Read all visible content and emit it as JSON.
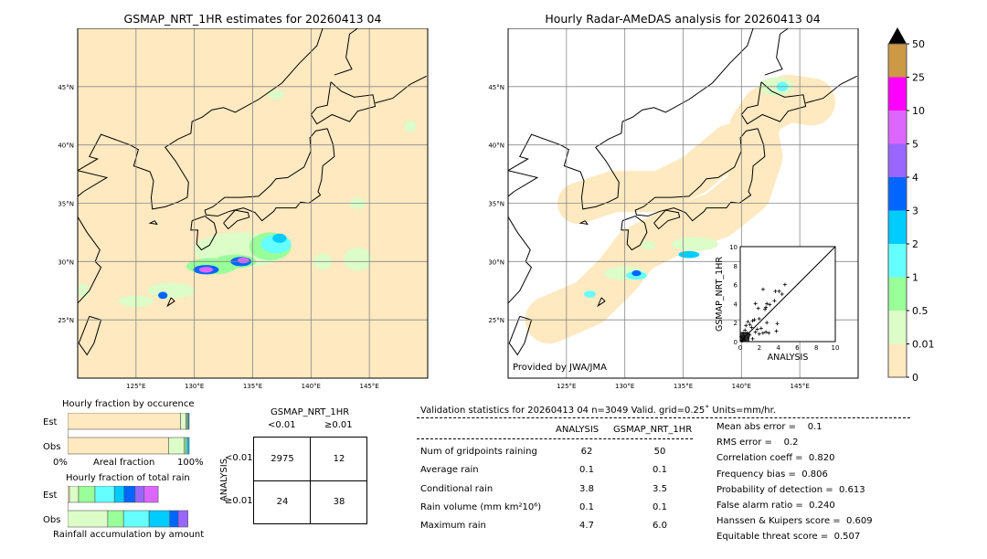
{
  "colors": {
    "palette": [
      "#fee9c0",
      "#dcfcc8",
      "#99ff99",
      "#66ffff",
      "#00ccff",
      "#0066ff",
      "#9966ff",
      "#dd66ff",
      "#ff00ff",
      "#cc9944"
    ],
    "background_land_sea": "#fee9c0"
  },
  "chart_data": [
    {
      "type": "heatmap",
      "title": "GSMAP_NRT_1HR estimates for 20260413 04",
      "xlim": [
        120,
        150
      ],
      "ylim": [
        20,
        50
      ],
      "x_ticks": [
        "125°E",
        "130°E",
        "135°E",
        "140°E",
        "145°E"
      ],
      "y_ticks": [
        "25°N",
        "30°N",
        "35°N",
        "40°N",
        "45°N"
      ],
      "grid": true
    },
    {
      "type": "heatmap",
      "title": "Hourly Radar-AMeDAS analysis for 20260413 04",
      "xlim": [
        120,
        150
      ],
      "ylim": [
        20,
        50
      ],
      "x_ticks": [
        "125°E",
        "130°E",
        "135°E",
        "140°E",
        "145°E"
      ],
      "y_ticks": [
        "25°N",
        "30°N",
        "35°N",
        "40°N",
        "45°N"
      ],
      "grid": true,
      "annotation": "Provided by JWA/JMA"
    },
    {
      "type": "scatter",
      "xlabel": "ANALYSIS",
      "ylabel": "GSMAP_NRT_1HR",
      "xlim": [
        0,
        10
      ],
      "ylim": [
        0,
        10
      ],
      "x_ticks": [
        "0",
        "2",
        "4",
        "6",
        "8",
        "10"
      ],
      "y_ticks": [
        "0",
        "2",
        "4",
        "6",
        "8",
        "10"
      ],
      "points": [
        [
          2.4,
          5.5
        ],
        [
          4.7,
          6.0
        ],
        [
          3.7,
          5.3
        ],
        [
          4.1,
          5.3
        ],
        [
          4.4,
          5.0
        ],
        [
          1.6,
          4.0
        ],
        [
          2.8,
          4.0
        ],
        [
          3.1,
          3.9
        ],
        [
          3.6,
          4.3
        ],
        [
          1.9,
          3.5
        ],
        [
          2.6,
          3.4
        ],
        [
          2.7,
          3.6
        ],
        [
          1.3,
          2.2
        ],
        [
          1.5,
          2.3
        ],
        [
          2.0,
          2.4
        ],
        [
          0.8,
          2.1
        ],
        [
          1.0,
          1.8
        ],
        [
          2.8,
          2.0
        ],
        [
          3.9,
          1.9
        ],
        [
          3.8,
          1.1
        ],
        [
          2.2,
          1.4
        ],
        [
          1.8,
          1.3
        ],
        [
          2.4,
          0.9
        ],
        [
          2.7,
          1.0
        ],
        [
          3.0,
          0.9
        ],
        [
          1.2,
          1.5
        ],
        [
          0.6,
          1.7
        ],
        [
          0.5,
          1.2
        ],
        [
          0.7,
          0.9
        ],
        [
          0.4,
          0.6
        ],
        [
          0.3,
          0.3
        ],
        [
          0.2,
          0.1
        ],
        [
          0.5,
          0.2
        ],
        [
          0.8,
          0.4
        ],
        [
          1.0,
          0.7
        ],
        [
          0.1,
          0.5
        ],
        [
          0.3,
          0.9
        ],
        [
          1.6,
          1.0
        ],
        [
          2.0,
          0.8
        ],
        [
          1.3,
          0.3
        ]
      ]
    },
    {
      "type": "bar",
      "title": "Hourly fraction by occurence",
      "categories": [
        "Est",
        "Obs"
      ],
      "xlabel": "Areal fraction",
      "x_ticks": [
        "0%",
        "100%"
      ],
      "series_percent": {
        "Est": [
          93,
          4.5,
          1,
          0.8,
          0.7
        ],
        "Obs": [
          83,
          13,
          1.5,
          1.2,
          1.3
        ]
      }
    },
    {
      "type": "bar",
      "title": "Hourly fraction of total rain",
      "categories": [
        "Est",
        "Obs"
      ],
      "xlabel": "Rainfall accumulation by amount",
      "series_percent": {
        "Est": [
          1.5,
          7.5,
          13.5,
          16,
          8,
          9,
          7.5,
          11.5,
          0,
          0
        ],
        "Obs": [
          0,
          33,
          13,
          21,
          17,
          7,
          8,
          0,
          0,
          0
        ]
      }
    }
  ],
  "colorbar": {
    "ticks": [
      "0",
      "0.01",
      "0.5",
      "1",
      "2",
      "3",
      "4",
      "5",
      "10",
      "25",
      "50"
    ]
  },
  "contingency": {
    "title": "GSMAP_NRT_1HR",
    "col_labels": [
      "<0.01",
      "≥0.01"
    ],
    "row_axis": "ANALYSIS",
    "row_labels": [
      "<0.01",
      "≥0.01"
    ],
    "cells": [
      [
        "2975",
        "12"
      ],
      [
        "24",
        "38"
      ]
    ]
  },
  "stats": {
    "header": "Validation statistics for 20260413 04  n=3049 Valid. grid=0.25˚ Units=mm/hr.",
    "col_analysis": "ANALYSIS",
    "col_gsmap": "GSMAP_NRT_1HR",
    "rows": [
      {
        "label": "Num of gridpoints raining",
        "a": "62",
        "g": "50"
      },
      {
        "label": "Average rain",
        "a": "0.1",
        "g": "0.1"
      },
      {
        "label": "Conditional rain",
        "a": "3.8",
        "g": "3.5"
      },
      {
        "label": "Rain volume (mm km²10⁶)",
        "a": "0.1",
        "g": "0.1"
      },
      {
        "label": "Maximum rain",
        "a": "4.7",
        "g": "6.0"
      }
    ],
    "scores": [
      "Mean abs error =    0.1",
      "RMS error =    0.2",
      "Correlation coeff =  0.820",
      "Frequency bias =  0.806",
      "Probability of detection =  0.613",
      "False alarm ratio =  0.240",
      "Hanssen & Kuipers score =  0.609",
      "Equitable threat score =  0.507"
    ]
  }
}
